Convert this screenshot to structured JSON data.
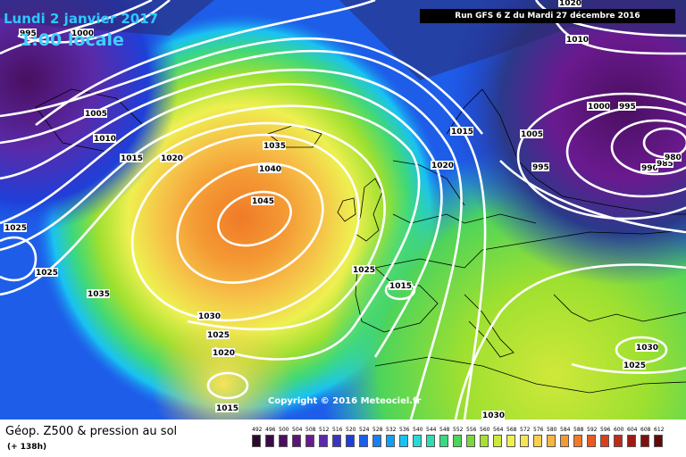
{
  "header": {
    "date_label": "Lundi 2 janvier 2017",
    "time_label": "1:00 locale",
    "run_label": "Run GFS 6 Z du Mardi 27 décembre 2016"
  },
  "copyright": "Copyright © 2016 Meteociel.fr",
  "footer": {
    "title": "Géop. Z500 & pression au sol",
    "subtitle": "(+ 138h)"
  },
  "scale": {
    "values": [
      "492",
      "496",
      "500",
      "504",
      "508",
      "512",
      "516",
      "520",
      "524",
      "528",
      "532",
      "536",
      "540",
      "544",
      "548",
      "552",
      "556",
      "560",
      "564",
      "568",
      "572",
      "576",
      "580",
      "584",
      "588",
      "592",
      "596",
      "600",
      "604",
      "608",
      "612"
    ],
    "colors": [
      "#2a0a2e",
      "#3a0c45",
      "#4a0f60",
      "#5b1478",
      "#6a1a8f",
      "#5a2aa8",
      "#3a35c0",
      "#1f3fd8",
      "#1e5de8",
      "#1a80f0",
      "#10a0f5",
      "#19c2f2",
      "#2ad8d8",
      "#30dcb0",
      "#3cd880",
      "#4ed45a",
      "#7ad83c",
      "#a6e030",
      "#d0e83a",
      "#eef050",
      "#f6e458",
      "#f8d04c",
      "#f6b640",
      "#f49a34",
      "#f07a28",
      "#e85a20",
      "#d8401c",
      "#c02a18",
      "#a01a14",
      "#801010",
      "#600a0a"
    ]
  },
  "pressure_labels": [
    {
      "text": "995"
    },
    {
      "text": "1000"
    },
    {
      "text": "1005"
    },
    {
      "text": "1010"
    },
    {
      "text": "1015"
    },
    {
      "text": "1020"
    },
    {
      "text": "1035"
    },
    {
      "text": "1040"
    },
    {
      "text": "1045"
    },
    {
      "text": "1025"
    },
    {
      "text": "1025"
    },
    {
      "text": "1035"
    },
    {
      "text": "1030"
    },
    {
      "text": "1025"
    },
    {
      "text": "1020"
    },
    {
      "text": "1015"
    },
    {
      "text": "1015"
    },
    {
      "text": "1025"
    },
    {
      "text": "1015"
    },
    {
      "text": "1020"
    },
    {
      "text": "1005"
    },
    {
      "text": "995"
    },
    {
      "text": "1000"
    },
    {
      "text": "995"
    },
    {
      "text": "990"
    },
    {
      "text": "985"
    },
    {
      "text": "980"
    },
    {
      "text": "1010"
    },
    {
      "text": "1020"
    },
    {
      "text": "1030"
    },
    {
      "text": "1025"
    },
    {
      "text": "1030"
    }
  ]
}
